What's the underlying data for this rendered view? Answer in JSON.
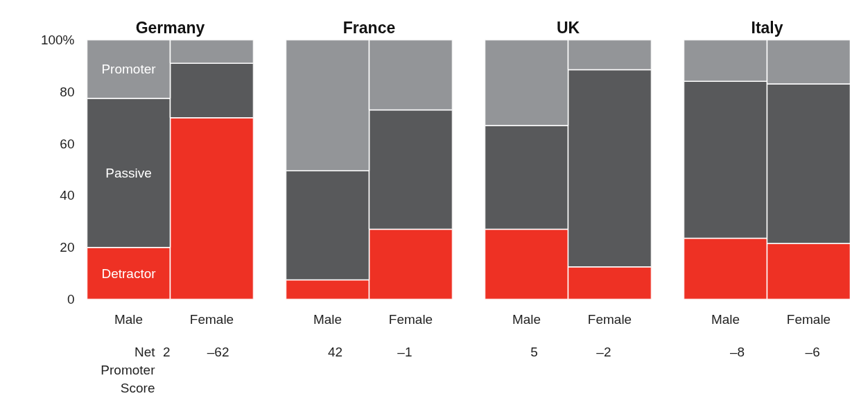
{
  "chart_data": [
    {
      "type": "bar",
      "title": "Germany",
      "stacked": true,
      "categories": [
        "Male",
        "Female"
      ],
      "ylim": [
        0,
        100
      ],
      "yticks": [
        0,
        20,
        40,
        60,
        80,
        {
          "value": 100,
          "label": "100%"
        }
      ],
      "legend": false,
      "series": [
        {
          "name": "Detractor",
          "color": "#ee3124",
          "values": [
            20,
            70
          ]
        },
        {
          "name": "Passive",
          "color": "#58595b",
          "values": [
            57.5,
            21
          ]
        },
        {
          "name": "Promoter",
          "color": "#939598",
          "values": [
            22.5,
            9
          ]
        }
      ],
      "annotations": [
        "Net Promoter Score",
        "2",
        "–62"
      ]
    },
    {
      "type": "bar",
      "title": "France",
      "stacked": true,
      "categories": [
        "Male",
        "Female"
      ],
      "ylim": [
        0,
        100
      ],
      "tick_labels": "x",
      "legend": false,
      "series": [
        {
          "color": "#ee3124",
          "values": [
            7.5,
            27
          ]
        },
        {
          "color": "#58595b",
          "values": [
            42,
            46
          ]
        },
        {
          "color": "#939598",
          "values": [
            50.5,
            27
          ]
        }
      ],
      "annotations": [
        "42",
        "–1"
      ]
    },
    {
      "type": "bar",
      "title": "UK",
      "stacked": true,
      "categories": [
        "Male",
        "Female"
      ],
      "ylim": [
        0,
        100
      ],
      "tick_labels": "x",
      "legend": false,
      "series": [
        {
          "color": "#ee3124",
          "values": [
            27,
            12.5
          ]
        },
        {
          "color": "#58595b",
          "values": [
            40,
            76
          ]
        },
        {
          "color": "#939598",
          "values": [
            33,
            11.5
          ]
        }
      ],
      "annotations": [
        "5",
        "–2"
      ]
    },
    {
      "type": "bar",
      "title": "Italy",
      "stacked": true,
      "categories": [
        "Male",
        "Female"
      ],
      "ylim": [
        0,
        100
      ],
      "tick_labels": "x",
      "legend": false,
      "series": [
        {
          "color": "#ee3124",
          "values": [
            23.5,
            21.5
          ]
        },
        {
          "color": "#58595b",
          "values": [
            60.5,
            61.5
          ]
        },
        {
          "color": "#939598",
          "values": [
            16,
            17
          ]
        }
      ],
      "annotations": [
        "–8",
        "–6"
      ]
    }
  ]
}
